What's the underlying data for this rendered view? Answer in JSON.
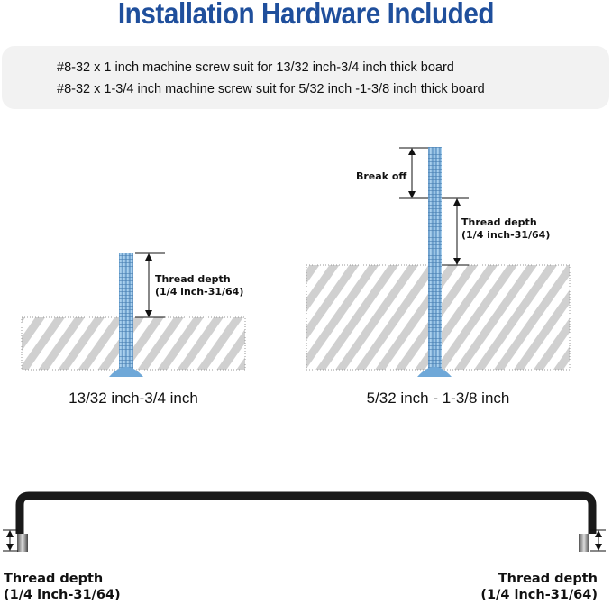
{
  "title": "Installation Hardware Included",
  "info_lines": [
    "#8-32 x 1 inch machine screw suit for  13/32 inch-3/4 inch thick board",
    "#8-32 x 1-3/4 inch machine screw suit for 5/32 inch -1-3/8 inch thick board"
  ],
  "left_diagram": {
    "thread_label": "Thread depth",
    "thread_range": "(1/4 inch-31/64)",
    "caption": "13/32 inch-3/4 inch"
  },
  "right_diagram": {
    "break_label": "Break off",
    "thread_label": "Thread depth",
    "thread_range": "(1/4 inch-31/64)",
    "caption": "5/32 inch - 1-3/8 inch"
  },
  "handle": {
    "left_label": "Thread depth",
    "left_range": "(1/4 inch-31/64)",
    "right_label": "Thread depth",
    "right_range": "(1/4 inch-31/64)"
  },
  "colors": {
    "title": "#1f4f9c",
    "screw": "#8cc0e6",
    "board_hatch": "#cfcfcf",
    "handle": "#1a1a1a"
  }
}
